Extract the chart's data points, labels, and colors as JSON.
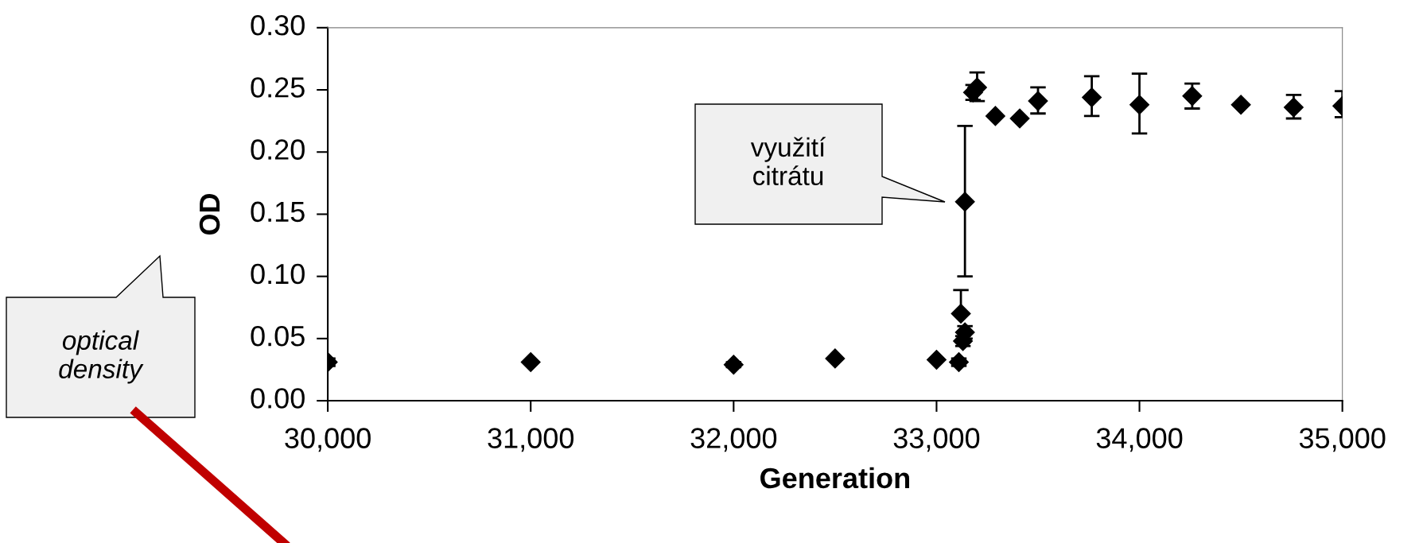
{
  "chart_data": {
    "type": "scatter",
    "xlabel": "Generation",
    "ylabel": "OD",
    "marker": "diamond",
    "legend": false,
    "xlim": [
      30000,
      35000
    ],
    "ylim": [
      0,
      0.3
    ],
    "xticks": [
      {
        "value": 30000,
        "label": "30,000"
      },
      {
        "value": 31000,
        "label": "31,000"
      },
      {
        "value": 32000,
        "label": "32,000"
      },
      {
        "value": 33000,
        "label": "33,000"
      },
      {
        "value": 34000,
        "label": "34,000"
      },
      {
        "value": 35000,
        "label": "35,000"
      }
    ],
    "yticks": [
      {
        "value": 0,
        "label": "0.00"
      },
      {
        "value": 0.05,
        "label": "0.05"
      },
      {
        "value": 0.1,
        "label": "0.10"
      },
      {
        "value": 0.15,
        "label": "0.15"
      },
      {
        "value": 0.2,
        "label": "0.20"
      },
      {
        "value": 0.25,
        "label": "0.25"
      },
      {
        "value": 0.3,
        "label": "0.30"
      }
    ],
    "series": [
      {
        "color": "#000000",
        "x": [
          30000,
          31000,
          32000,
          32500,
          33000,
          33110,
          33120,
          33130,
          33140,
          33140,
          33180,
          33200,
          33290,
          33410,
          33500,
          33765,
          34000,
          34260,
          34500,
          34760,
          35000
        ],
        "values": [
          0.031,
          0.031,
          0.029,
          0.034,
          0.033,
          0.031,
          0.07,
          0.048,
          0.055,
          0.16,
          0.248,
          0.252,
          0.229,
          0.227,
          0.241,
          0.244,
          0.238,
          0.245,
          0.238,
          0.236,
          0.237
        ],
        "errors": [
          0.003,
          null,
          0.002,
          null,
          null,
          0.003,
          [
            0.07,
            0.089
          ],
          0.004,
          0.005,
          [
            0.1,
            0.221
          ],
          0.006,
          [
            0.241,
            0.264
          ],
          null,
          null,
          [
            0.231,
            0.252
          ],
          [
            0.229,
            0.261
          ],
          [
            0.215,
            0.263
          ],
          [
            0.235,
            0.255
          ],
          null,
          [
            0.227,
            0.246
          ],
          [
            0.228,
            0.249
          ]
        ]
      }
    ],
    "annotations": [
      "využití\ncitrátu",
      "optical\ndensity"
    ]
  }
}
